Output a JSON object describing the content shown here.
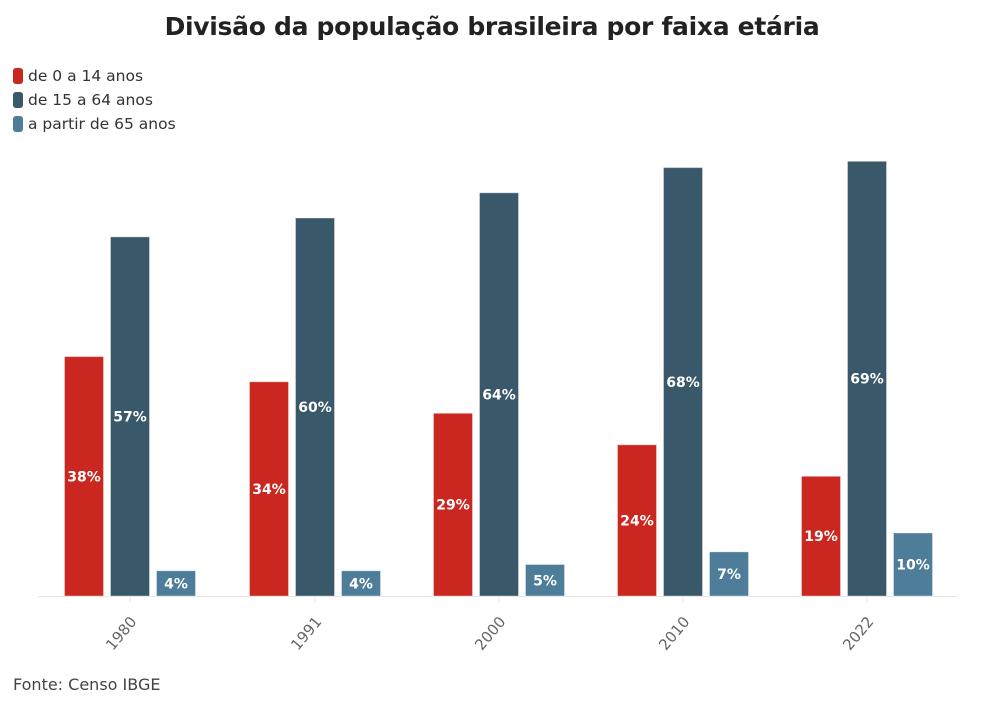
{
  "chart_data": {
    "type": "bar",
    "title": "Divisão da população brasileira por faixa etária",
    "xlabel": "",
    "ylabel": "",
    "ylim": [
      0,
      70
    ],
    "grid": false,
    "legend_position": "top-left",
    "categories": [
      "1980",
      "1991",
      "2000",
      "2010",
      "2022"
    ],
    "series": [
      {
        "name": "de 0 a 14 anos",
        "color": "#c9271f",
        "values": [
          38,
          34,
          29,
          24,
          19
        ],
        "labels": [
          "38%",
          "34%",
          "29%",
          "24%",
          "19%"
        ]
      },
      {
        "name": "de 15 a 64 anos",
        "color": "#395869",
        "values": [
          57,
          60,
          64,
          68,
          69
        ],
        "labels": [
          "57%",
          "60%",
          "64%",
          "68%",
          "69%"
        ]
      },
      {
        "name": "a partir de 65 anos",
        "color": "#4d7d98",
        "values": [
          4,
          4,
          5,
          7,
          10
        ],
        "labels": [
          "4%",
          "4%",
          "5%",
          "7%",
          "10%"
        ]
      }
    ],
    "source": "Fonte: Censo IBGE"
  }
}
